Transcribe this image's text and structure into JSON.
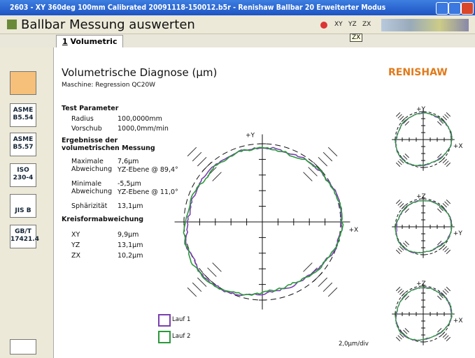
{
  "window": {
    "title": "2603 - XY 360deg 100mm Calibrated 20091118-150012.b5r - Renishaw Ballbar 20 Erweiterter Modus"
  },
  "header": {
    "title": "Ballbar Messung auswerten",
    "plane_buttons": [
      "XY",
      "YZ",
      "ZX"
    ],
    "tooltip": "ZX"
  },
  "tab": {
    "index": "1",
    "label": "Volumetric"
  },
  "sidebar": [
    [
      "ASME",
      "B5.54"
    ],
    [
      "ASME",
      "B5.57"
    ],
    [
      "ISO",
      "230-4"
    ],
    [
      "JIS B"
    ],
    [
      "GB/T",
      "17421.4"
    ]
  ],
  "report": {
    "title": "Volumetrische Diagnose (µm)",
    "machine": "Maschine: Regression QC20W",
    "brand": "RENISHAW",
    "test_parameter": {
      "heading": "Test Parameter",
      "rows": [
        [
          "Radius",
          "100,0000mm"
        ],
        [
          "Vorschub",
          "1000,0mm/min"
        ]
      ]
    },
    "results": {
      "heading": "Ergebnisse der volumetrischen Messung",
      "max": {
        "label": [
          "Maximale",
          "Abweichung"
        ],
        "value": "7,6µm",
        "where": "YZ-Ebene @ 89,4°"
      },
      "min": {
        "label": [
          "Minimale",
          "Abweichung"
        ],
        "value": "-5,5µm",
        "where": "YZ-Ebene @ 11,0°"
      },
      "sphericity": {
        "label": "Sphärizität",
        "value": "13,1µm"
      }
    },
    "roundness": {
      "heading": "Kreisformabweichung",
      "rows": [
        [
          "XY",
          "9,9µm"
        ],
        [
          "YZ",
          "13,1µm"
        ],
        [
          "ZX",
          "10,2µm"
        ]
      ]
    },
    "legend": [
      "Lauf 1",
      "Lauf 2"
    ],
    "scale": "2,0µm/div"
  },
  "plots": {
    "main": {
      "up": "+Y",
      "right": "+X"
    },
    "small": [
      {
        "up": "+Y",
        "right": "+X"
      },
      {
        "up": "+Z",
        "right": "+Y"
      },
      {
        "up": "+Z",
        "right": "+X"
      }
    ]
  }
}
